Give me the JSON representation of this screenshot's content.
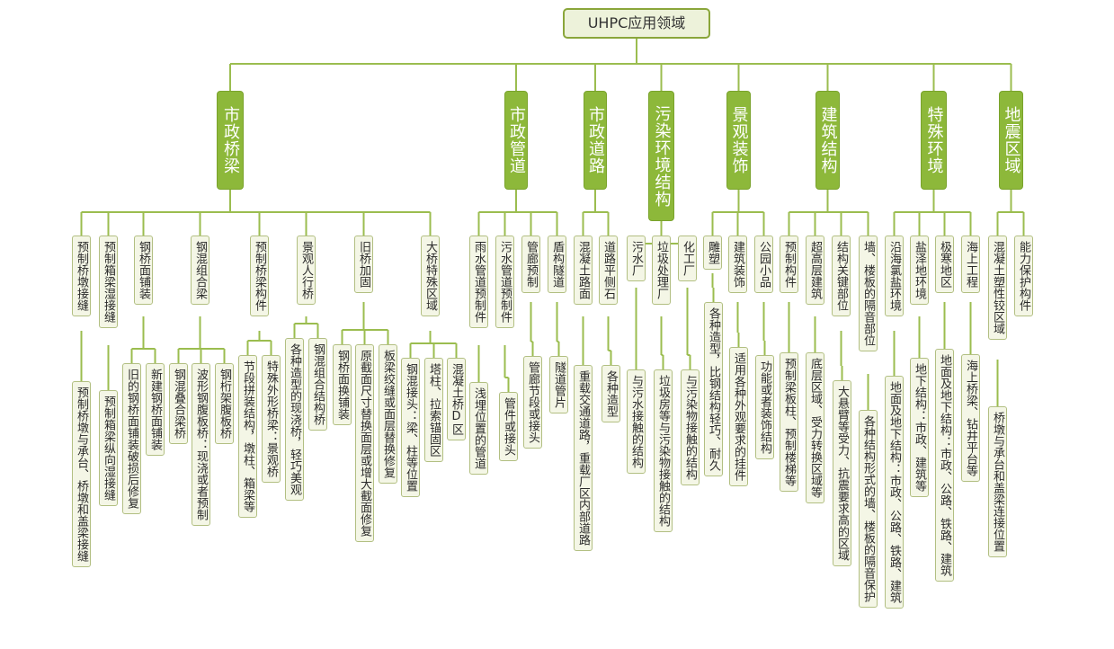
{
  "root": "UHPC应用领域",
  "categories": [
    {
      "label": "市政桥梁",
      "children": [
        {
          "label": "预制桥墩接缝",
          "children": [
            "预制桥墩与承台、桥墩和盖梁接缝"
          ]
        },
        {
          "label": "预制箱梁湿接缝",
          "children": [
            "预制箱梁纵向湿接缝"
          ]
        },
        {
          "label": "钢桥面铺装",
          "children": [
            "旧的钢桥面铺装破损后修复",
            "新建钢桥面铺装"
          ]
        },
        {
          "label": "钢混组合梁",
          "children": [
            "钢混叠合梁桥",
            "波形钢腹板桥：现浇或者预制",
            "钢桁架腹板桥"
          ]
        },
        {
          "label": "预制桥梁构件",
          "children": [
            "节段拼装结构，墩柱、箱梁等",
            "特殊外形桥梁：景观桥"
          ]
        },
        {
          "label": "景观人行桥",
          "children": [
            "各种造型的现浇桥，轻巧美观",
            "钢混组合结构桥"
          ]
        },
        {
          "label": "旧桥加固",
          "children": [
            "钢桥面换铺装",
            "原截面尺寸替换面层或增大截面修复",
            "板梁绞缝或面层替换修复"
          ]
        },
        {
          "label": "大桥特殊区域",
          "children": [
            "钢混接头：梁、柱等位置",
            "塔柱、拉索锚固区",
            "混凝土桥D区"
          ]
        }
      ]
    },
    {
      "label": "市政管道",
      "children": [
        {
          "label": "雨水管道预制件",
          "children": [
            "浅埋位置的管道"
          ]
        },
        {
          "label": "污水管道预制件",
          "children": [
            "管件或接头"
          ]
        },
        {
          "label": "管廊预制",
          "children": [
            "管廊节段或接头"
          ]
        },
        {
          "label": "盾构隧道",
          "children": [
            "隧道管片"
          ]
        }
      ]
    },
    {
      "label": "市政道路",
      "children": [
        {
          "label": "混凝土路面",
          "children": [
            "重载交通道路，重载厂区内部道路"
          ]
        },
        {
          "label": "道路平侧石",
          "children": [
            "各种造型"
          ]
        }
      ]
    },
    {
      "label": "污染环境结构",
      "children": [
        {
          "label": "污水厂",
          "children": [
            "与污水接触的结构"
          ]
        },
        {
          "label": "垃圾处理厂",
          "children": [
            "垃圾房等与污染物接触的结构"
          ]
        },
        {
          "label": "化工厂",
          "children": [
            "与污染物接触的结构"
          ]
        }
      ]
    },
    {
      "label": "景观装饰",
      "children": [
        {
          "label": "雕塑",
          "children": [
            "各种造型，比钢结构轻巧、耐久"
          ]
        },
        {
          "label": "建筑装饰",
          "children": [
            "适用各种外观要求的挂件"
          ]
        },
        {
          "label": "公园小品",
          "children": [
            "功能或者装饰结构"
          ]
        }
      ]
    },
    {
      "label": "建筑结构",
      "children": [
        {
          "label": "预制构件",
          "children": [
            "预制梁板柱、预制楼梯等"
          ]
        },
        {
          "label": "超高层建筑",
          "children": [
            "底层区域、受力转换区域等"
          ]
        },
        {
          "label": "结构关键部位",
          "children": [
            "大悬臂等受力、抗震要求高的区域"
          ]
        },
        {
          "label": "墙、楼板的隔音部位",
          "children": [
            "各种结构形式的墙、楼板的隔音保护"
          ]
        }
      ]
    },
    {
      "label": "特殊环境",
      "children": [
        {
          "label": "沿海氯盐环境",
          "children": [
            "地面及地下结构：市政、公路、铁路、建筑"
          ]
        },
        {
          "label": "盐泽地环境",
          "children": [
            "地下结构：市政、建筑等"
          ]
        },
        {
          "label": "极寒地区",
          "children": [
            "地面及地下结构：市政、公路、铁路、建筑"
          ]
        },
        {
          "label": "海上工程",
          "children": [
            "海上桥梁、钻井平台等"
          ]
        }
      ]
    },
    {
      "label": "地震区域",
      "children": [
        {
          "label": "混凝土塑性铰区域",
          "children": [
            "桥墩与承台和盖梁连接位置"
          ]
        },
        {
          "label": "能力保护构件",
          "children": []
        }
      ]
    }
  ]
}
